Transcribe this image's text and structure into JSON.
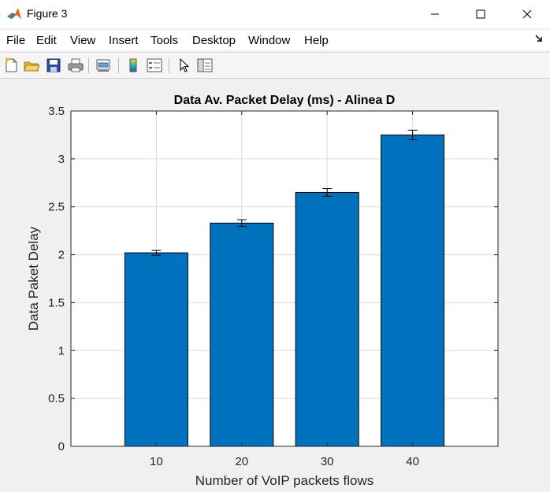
{
  "window": {
    "title": "Figure 3",
    "minimize_icon": "minimize-icon",
    "maximize_icon": "maximize-icon",
    "close_icon": "close-icon"
  },
  "menu": {
    "items": [
      "File",
      "Edit",
      "View",
      "Insert",
      "Tools",
      "Desktop",
      "Window",
      "Help"
    ]
  },
  "toolbar": {
    "icons": [
      "new-figure-icon",
      "open-file-icon",
      "save-icon",
      "print-icon",
      "link-plot-icon",
      "colorbar-icon",
      "legend-icon",
      "edit-plot-arrow-icon",
      "property-inspector-icon"
    ]
  },
  "chart_data": {
    "type": "bar",
    "title": "Data Av. Packet Delay (ms) - Alinea D",
    "xlabel": "Number of VoIP packets flows",
    "ylabel": "Data Paket Delay",
    "categories": [
      "10",
      "20",
      "30",
      "40"
    ],
    "values": [
      2.02,
      2.33,
      2.65,
      3.25
    ],
    "error": [
      0.025,
      0.035,
      0.04,
      0.05
    ],
    "xlim": [
      0,
      50
    ],
    "ylim": [
      0,
      3.5
    ],
    "yticks": [
      "0",
      "0.5",
      "1",
      "1.5",
      "2",
      "2.5",
      "3",
      "3.5"
    ],
    "grid": true,
    "bar_color": "#0072bd"
  }
}
